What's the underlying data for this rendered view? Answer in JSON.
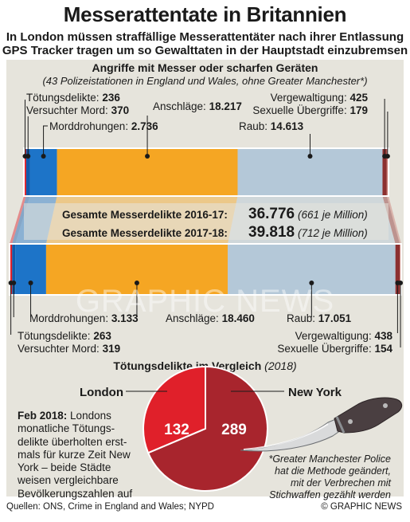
{
  "title": "Messerattentate in Britannien",
  "subtitle_line1": "In London müssen straffällige Messerattentäter nach ihrer Entlassung",
  "subtitle_line2": "GPS Tracker tragen um so Gewalttaten in der Hauptstadt einzubremsen",
  "section_title": "Angriffe mit Messer oder scharfen Geräten",
  "section_subtitle": "(43 Polizeistationen in England und Wales, ohne Greater Manchester*)",
  "colors": {
    "toetung": "#e0202a",
    "versuchter_mord": "#0f5cad",
    "morddrohungen": "#1d74c8",
    "anschlaege": "#f5a623",
    "raub": "#b4c8d8",
    "vergewaltigung": "#8c3030",
    "sexuelle_uebergriffe": "#c97a72",
    "panel": "#e6e4dc",
    "london": "#e0202a",
    "new_york": "#a8252d"
  },
  "chart_data": [
    {
      "type": "bar",
      "stacked": true,
      "orientation": "horizontal",
      "categories": [
        "2016-17",
        "2017-18"
      ],
      "series": [
        {
          "name": "Tötungsdelikte",
          "values": [
            236,
            263
          ]
        },
        {
          "name": "Versuchter Mord",
          "values": [
            370,
            319
          ]
        },
        {
          "name": "Morddrohungen",
          "values": [
            2736,
            3133
          ]
        },
        {
          "name": "Anschläge",
          "values": [
            18217,
            18460
          ]
        },
        {
          "name": "Raub",
          "values": [
            14613,
            17051
          ]
        },
        {
          "name": "Vergewaltigung",
          "values": [
            425,
            438
          ]
        },
        {
          "name": "Sexuelle Übergriffe",
          "values": [
            179,
            154
          ]
        }
      ],
      "totals": [
        36776,
        39818
      ],
      "title": "Angriffe mit Messer oder scharfen Geräten",
      "subtitle": "(43 Polizeistationen in England und Wales, ohne Greater Manchester*)"
    },
    {
      "type": "pie",
      "title": "Tötungsdelikte im Vergleich",
      "subtitle": "(2018)",
      "categories": [
        "London",
        "New York"
      ],
      "values": [
        132,
        289
      ]
    }
  ],
  "labels_2016": {
    "toetung": {
      "name": "Tötungsdelikte:",
      "value": "236"
    },
    "versuchter_mord": {
      "name": "Versuchter Mord:",
      "value": "370"
    },
    "morddrohungen": {
      "name": "Morddrohungen:",
      "value": "2.736"
    },
    "anschlaege": {
      "name": "Anschläge:",
      "value": "18.217"
    },
    "raub": {
      "name": "Raub:",
      "value": "14.613"
    },
    "vergewaltigung": {
      "name": "Vergewaltigung:",
      "value": "425"
    },
    "sexuelle_uebergriffe": {
      "name": "Sexuelle Übergriffe:",
      "value": "179"
    }
  },
  "labels_2017": {
    "toetung": {
      "name": "Tötungsdelikte:",
      "value": "263"
    },
    "versuchter_mord": {
      "name": "Versuchter Mord:",
      "value": "319"
    },
    "morddrohungen": {
      "name": "Morddrohungen:",
      "value": "3.133"
    },
    "anschlaege": {
      "name": "Anschläge:",
      "value": "18.460"
    },
    "raub": {
      "name": "Raub:",
      "value": "17.051"
    },
    "vergewaltigung": {
      "name": "Vergewaltigung:",
      "value": "438"
    },
    "sexuelle_uebergriffe": {
      "name": "Sexuelle Übergriffe:",
      "value": "154"
    }
  },
  "totals": {
    "label_2016": "Gesamte Messerdelikte 2016-17:",
    "value_2016": "36.776",
    "per_million_2016": "(661 je Million)",
    "label_2017": "Gesamte Messerdelikte 2017-18:",
    "value_2017": "39.818",
    "per_million_2017": "(712 je Million)"
  },
  "comparison": {
    "title": "Tötungsdelikte im Vergleich",
    "year": "(2018)",
    "london_label": "London",
    "new_york_label": "New York",
    "london_value": "132",
    "new_york_value": "289"
  },
  "feb_note": {
    "lead": "Feb 2018:",
    "line1": "Londons",
    "line2": "monatliche Tötungs-",
    "line3": "delikte überholten erst-",
    "line4": "mals für kurze Zeit New",
    "line5": "York – beide Städte",
    "line6": "weisen vergleichbare",
    "line7": "Bevölkerungszahlen auf"
  },
  "footnote": {
    "line1": "*Greater Manchester Police",
    "line2": "hat die Methode geändert,",
    "line3": "mit der Verbrechen mit",
    "line4": "Stichwaffen gezählt werden"
  },
  "watermark": "GRAPHIC NEWS",
  "footer": {
    "sources": "Quellen: ONS, Crime in England and Wales; NYPD",
    "credit": "© GRAPHIC NEWS"
  }
}
